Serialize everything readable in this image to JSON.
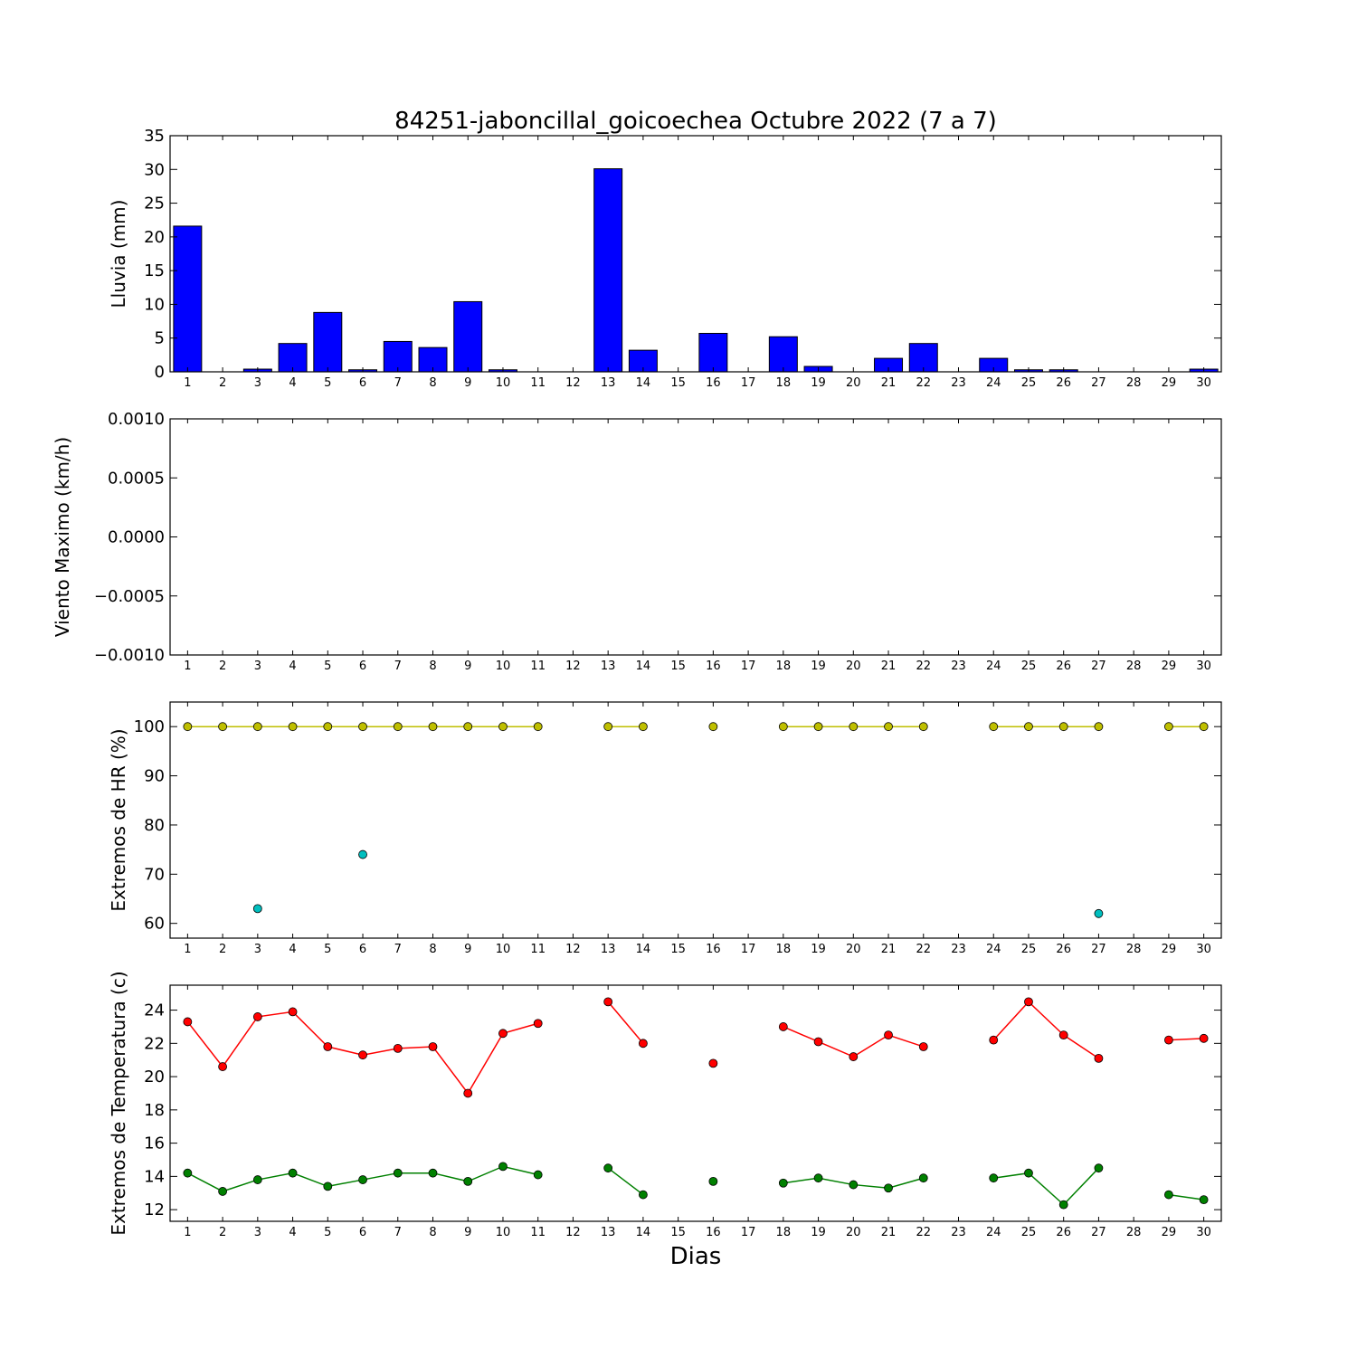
{
  "chart_data": {
    "type": "multi-panel",
    "title": "84251-jaboncillal_goicoechea Octubre 2022  (7 a 7)",
    "xlabel": "Dias",
    "x": [
      1,
      2,
      3,
      4,
      5,
      6,
      7,
      8,
      9,
      10,
      11,
      12,
      13,
      14,
      15,
      16,
      17,
      18,
      19,
      20,
      21,
      22,
      23,
      24,
      25,
      26,
      27,
      28,
      29,
      30
    ],
    "panels": [
      {
        "type": "bar",
        "ylabel": "Lluvia (mm)",
        "ylim": [
          0,
          35
        ],
        "yticks": [
          "0",
          "5",
          "10",
          "15",
          "20",
          "25",
          "30",
          "35"
        ],
        "color": "#0000ff",
        "values": [
          21.6,
          0,
          0.4,
          4.2,
          8.8,
          0.3,
          4.5,
          3.6,
          10.4,
          0.3,
          0,
          0,
          30.1,
          3.2,
          0,
          5.7,
          0,
          5.2,
          0.8,
          0,
          2.0,
          4.2,
          0,
          2.0,
          0.3,
          0.3,
          0,
          0,
          0,
          0.4
        ]
      },
      {
        "type": "line",
        "ylabel": "Viento Maximo (km/h)",
        "ylim": [
          -0.001,
          0.001
        ],
        "yticks": [
          "−0.0010",
          "−0.0005",
          "0.0000",
          "0.0005",
          "0.0010"
        ],
        "series": []
      },
      {
        "type": "line",
        "ylabel": "Extremos de HR (%)",
        "ylim": [
          57,
          105
        ],
        "yticks": [
          "60",
          "70",
          "80",
          "90",
          "100"
        ],
        "series": [
          {
            "color": "#bfbf00",
            "values": [
              100,
              100,
              100,
              100,
              100,
              100,
              100,
              100,
              100,
              100,
              100,
              null,
              100,
              100,
              null,
              100,
              null,
              100,
              100,
              100,
              100,
              100,
              null,
              100,
              100,
              100,
              100,
              null,
              100,
              100
            ]
          },
          {
            "color": "#00bfbf",
            "values": [
              null,
              null,
              63,
              null,
              null,
              74,
              null,
              null,
              null,
              null,
              null,
              null,
              null,
              null,
              null,
              null,
              null,
              null,
              null,
              null,
              null,
              null,
              null,
              null,
              null,
              null,
              62,
              null,
              null,
              null
            ]
          }
        ]
      },
      {
        "type": "line",
        "ylabel": "Extremos de Temperatura (c)",
        "ylim": [
          11.3,
          25.5
        ],
        "yticks": [
          "12",
          "14",
          "16",
          "18",
          "20",
          "22",
          "24"
        ],
        "series": [
          {
            "color": "#ff0000",
            "values": [
              23.3,
              20.6,
              23.6,
              23.9,
              21.8,
              21.3,
              21.7,
              21.8,
              19.0,
              22.6,
              23.2,
              null,
              24.5,
              22.0,
              null,
              20.8,
              null,
              23.0,
              22.1,
              21.2,
              22.5,
              21.8,
              null,
              22.2,
              24.5,
              22.5,
              21.1,
              null,
              22.2,
              22.3
            ]
          },
          {
            "color": "#008000",
            "values": [
              14.2,
              13.1,
              13.8,
              14.2,
              13.4,
              13.8,
              14.2,
              14.2,
              13.7,
              14.6,
              14.1,
              null,
              14.5,
              12.9,
              null,
              13.7,
              null,
              13.6,
              13.9,
              13.5,
              13.3,
              13.9,
              null,
              13.9,
              14.2,
              12.3,
              14.5,
              null,
              12.9,
              12.6
            ]
          }
        ]
      }
    ]
  }
}
